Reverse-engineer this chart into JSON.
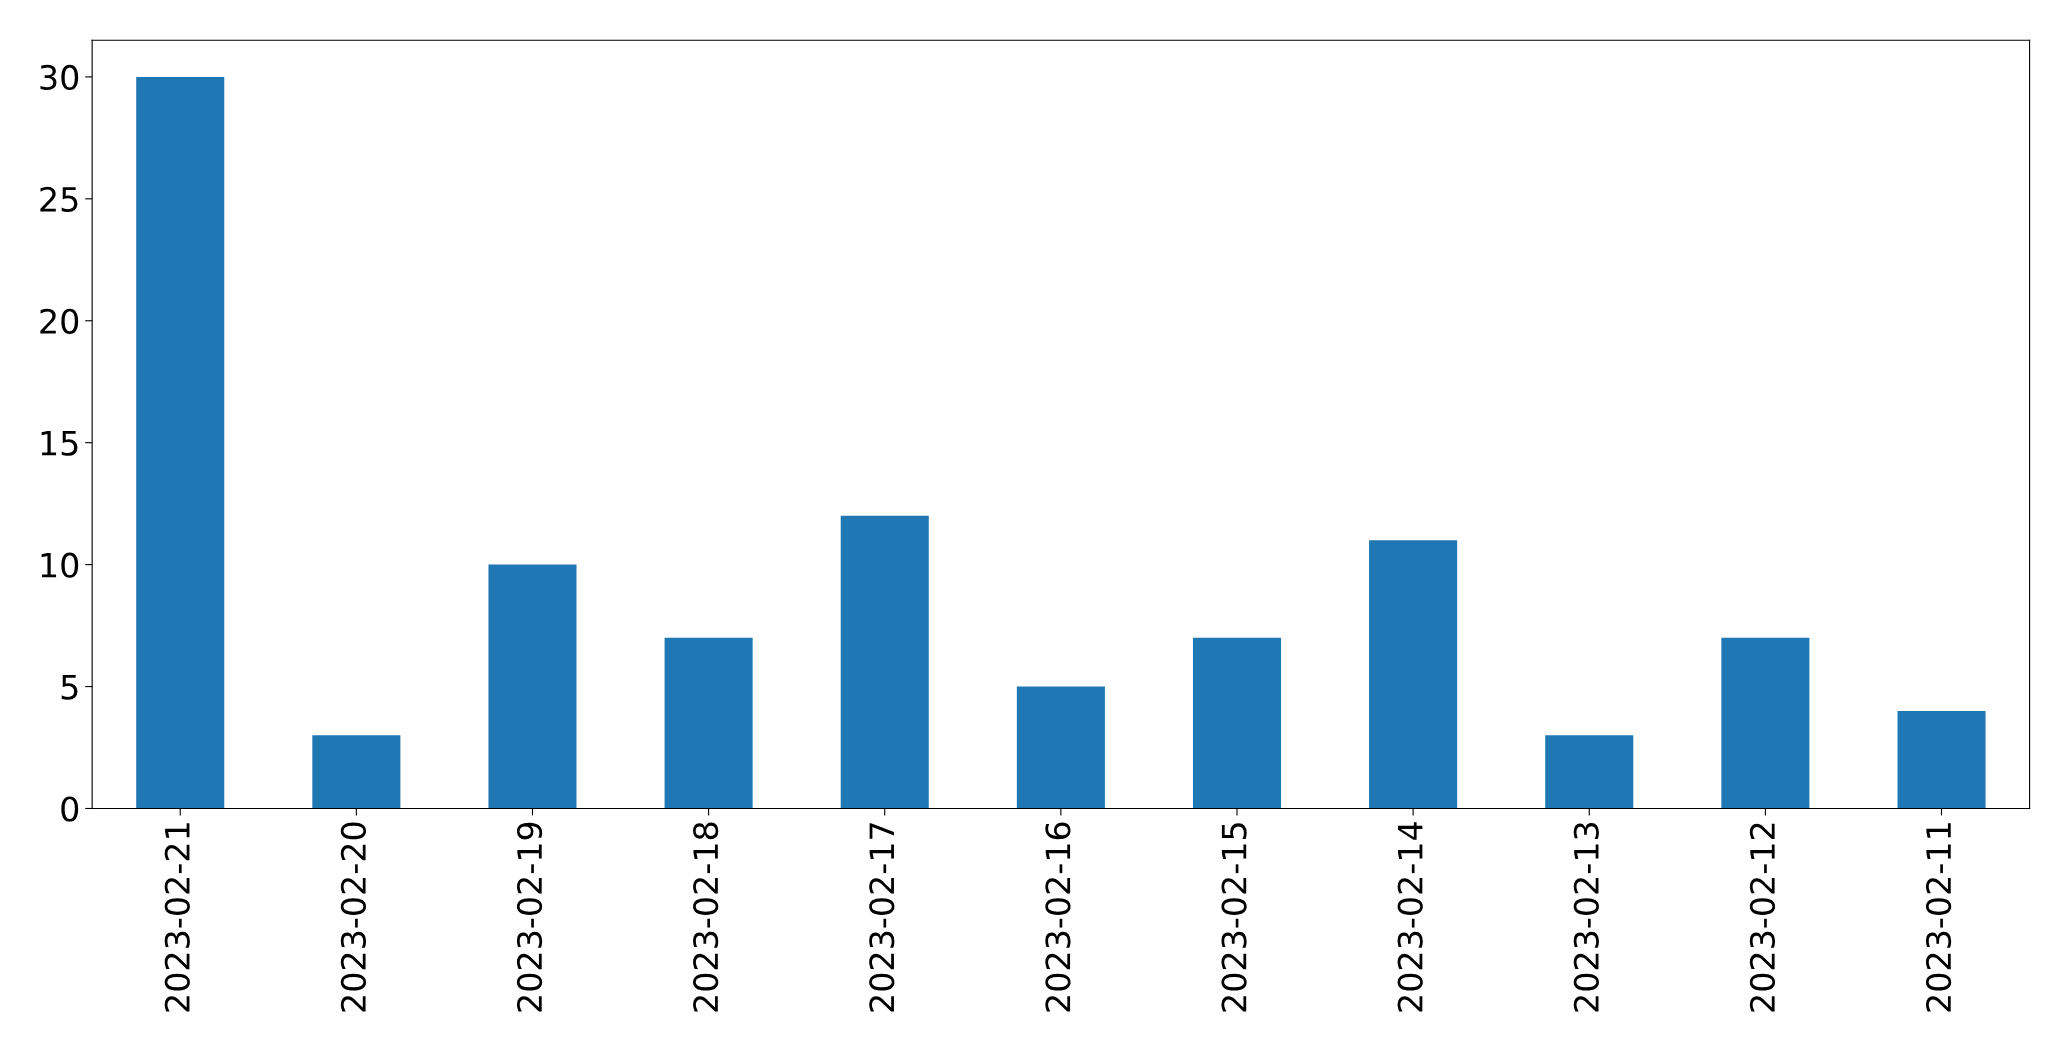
{
  "chart_data": {
    "type": "bar",
    "categories": [
      "2023-02-21",
      "2023-02-20",
      "2023-02-19",
      "2023-02-18",
      "2023-02-17",
      "2023-02-16",
      "2023-02-15",
      "2023-02-14",
      "2023-02-13",
      "2023-02-12",
      "2023-02-11"
    ],
    "values": [
      30,
      3,
      10,
      7,
      12,
      5,
      7,
      11,
      3,
      7,
      4
    ],
    "color": "#1f77b4",
    "ylim": [
      0,
      31.5
    ],
    "yticks": [
      0,
      5,
      10,
      15,
      20,
      25,
      30
    ],
    "grid": false,
    "legend": false
  }
}
